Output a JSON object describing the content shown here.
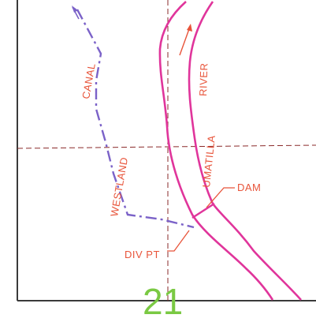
{
  "colors": {
    "border": "#3a3a3a",
    "grid": "#8a2a2a",
    "river": "#e0359b",
    "canal": "#7b62c8",
    "label": "#e8543a",
    "section_number": "#7ac943",
    "background": "#ffffff"
  },
  "labels": {
    "canal": "CANAL",
    "westland": "WESTLAND",
    "river": "RIVER",
    "umatilla": "UMATILLA",
    "dam": "DAM",
    "div_pt": "DIV PT"
  },
  "section_number": "21",
  "icons": {
    "canal_flow": "arrow-up-left-icon",
    "river_flow": "arrow-up-right-icon"
  }
}
